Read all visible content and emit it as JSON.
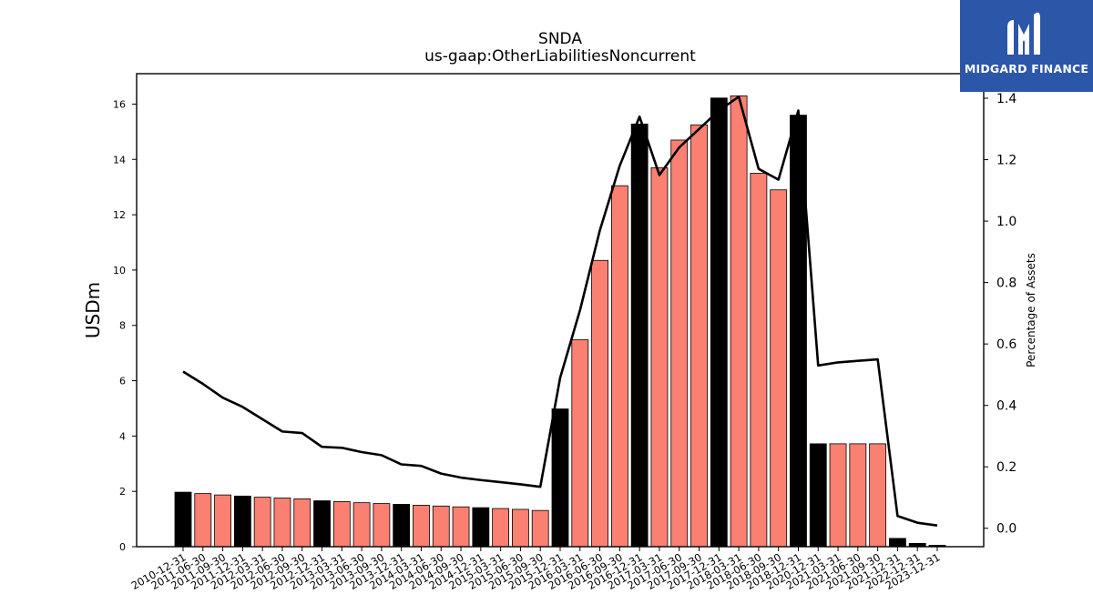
{
  "chart_data": {
    "type": "bar",
    "title": "SNDA",
    "subtitle": "us-gaap:OtherLiabilitiesNoncurrent",
    "ylabel": "USDm",
    "y2label": "Percentage of Assets",
    "ylim": [
      0,
      17.1
    ],
    "y2lim": [
      -0.06,
      1.48
    ],
    "yticks": [
      0,
      2,
      4,
      6,
      8,
      10,
      12,
      14,
      16
    ],
    "y2ticks": [
      "0.0",
      "0.2",
      "0.4",
      "0.6",
      "0.8",
      "1.0",
      "1.2",
      "1.4"
    ],
    "categories": [
      "2010-12-31",
      "2011-06-30",
      "2011-09-30",
      "2011-12-31",
      "2012-03-31",
      "2012-06-30",
      "2012-09-30",
      "2012-12-31",
      "2013-03-31",
      "2013-06-30",
      "2013-09-30",
      "2013-12-31",
      "2014-03-31",
      "2014-06-30",
      "2014-09-30",
      "2014-12-31",
      "2015-03-31",
      "2015-06-30",
      "2015-09-30",
      "2015-12-31",
      "2016-03-31",
      "2016-06-30",
      "2016-09-30",
      "2016-12-31",
      "2017-03-31",
      "2017-06-30",
      "2017-09-30",
      "2017-12-31",
      "2018-03-31",
      "2018-06-30",
      "2018-09-30",
      "2018-12-31",
      "2020-12-31",
      "2021-03-31",
      "2021-06-30",
      "2021-09-30",
      "2021-12-31",
      "2022-12-31",
      "2023-12-31"
    ],
    "values": [
      1.97,
      1.92,
      1.87,
      1.83,
      1.79,
      1.76,
      1.73,
      1.66,
      1.63,
      1.59,
      1.56,
      1.53,
      1.5,
      1.47,
      1.44,
      1.41,
      1.38,
      1.35,
      1.31,
      4.98,
      7.48,
      10.35,
      13.05,
      15.28,
      13.7,
      14.7,
      15.25,
      16.22,
      16.3,
      13.5,
      12.9,
      15.6,
      3.72,
      3.72,
      3.72,
      3.72,
      0.3,
      0.12,
      0.05
    ],
    "bar_kind": [
      "annual",
      "quarterly",
      "quarterly",
      "annual",
      "quarterly",
      "quarterly",
      "quarterly",
      "annual",
      "quarterly",
      "quarterly",
      "quarterly",
      "annual",
      "quarterly",
      "quarterly",
      "quarterly",
      "annual",
      "quarterly",
      "quarterly",
      "quarterly",
      "annual",
      "quarterly",
      "quarterly",
      "quarterly",
      "annual",
      "quarterly",
      "quarterly",
      "quarterly",
      "annual",
      "quarterly",
      "quarterly",
      "quarterly",
      "annual",
      "annual",
      "quarterly",
      "quarterly",
      "quarterly",
      "annual",
      "annual",
      "annual"
    ],
    "pct_of_assets": [
      0.51,
      0.47,
      0.425,
      0.395,
      0.355,
      0.315,
      0.31,
      0.265,
      0.262,
      0.248,
      0.238,
      0.208,
      0.203,
      0.178,
      0.165,
      0.157,
      0.15,
      0.143,
      0.135,
      0.49,
      0.71,
      0.97,
      1.18,
      1.34,
      1.15,
      1.24,
      1.3,
      1.36,
      1.405,
      1.17,
      1.135,
      1.36,
      0.53,
      0.54,
      0.545,
      0.55,
      0.04,
      0.018,
      0.009
    ],
    "colors": {
      "annual": "#000000",
      "quarterly": "#fa8072",
      "line": "#000000"
    },
    "grid": false,
    "legend": "none"
  },
  "logo": {
    "text": "MIDGARD FINANCE",
    "background": "#2c56a8"
  }
}
